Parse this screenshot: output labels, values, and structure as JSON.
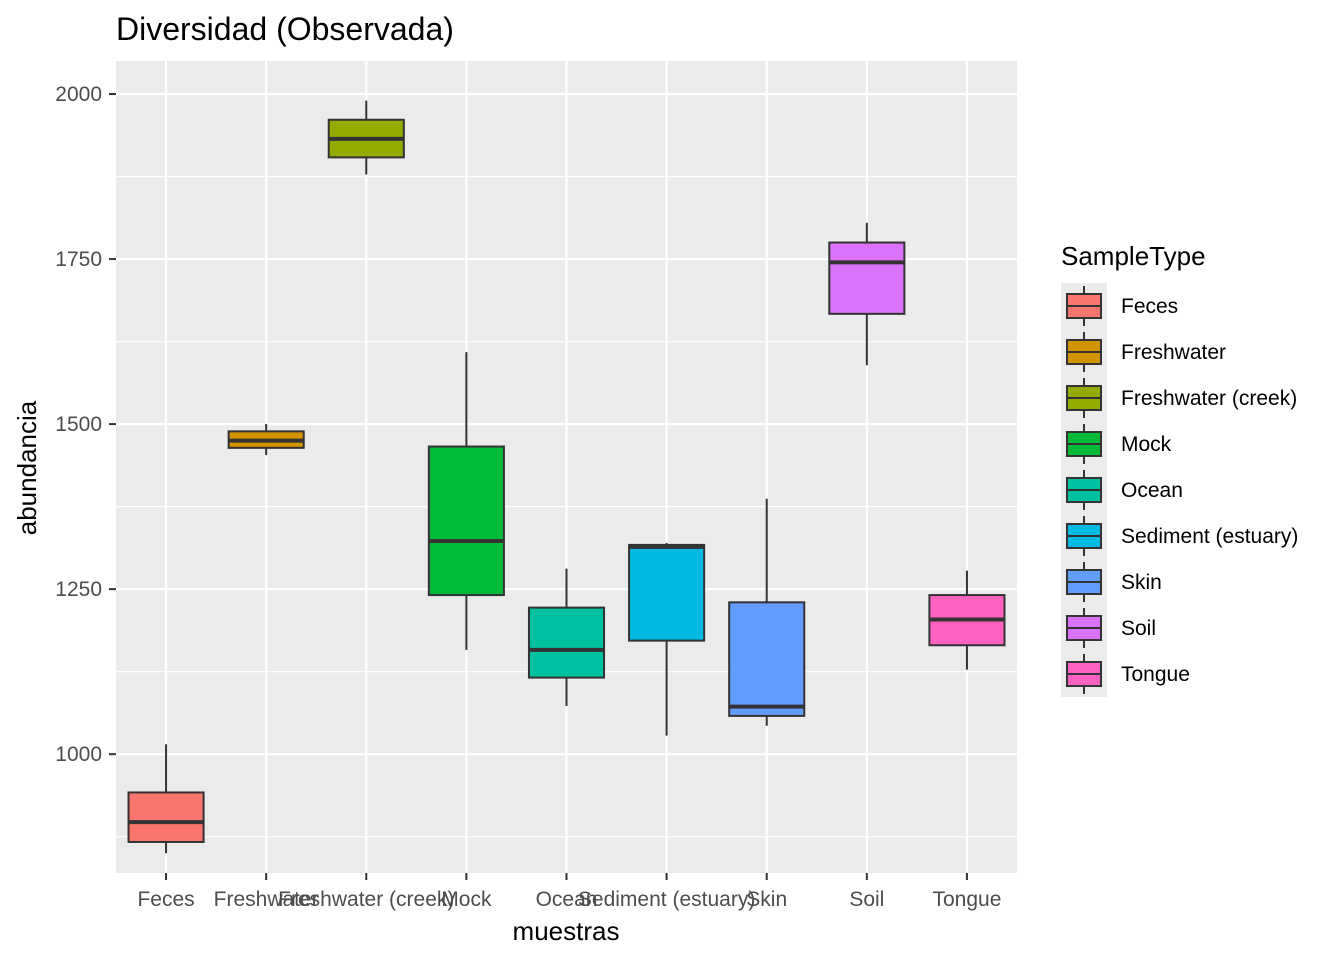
{
  "chart_data": {
    "type": "boxplot",
    "title": "Diversidad (Observada)",
    "xlabel": "muestras",
    "ylabel": "abundancia",
    "ylim": [
      820,
      2050
    ],
    "yticks": [
      1000,
      1250,
      1500,
      1750,
      2000
    ],
    "grid": true,
    "legend_position": "right",
    "legend_title": "SampleType",
    "categories": [
      "Feces",
      "Freshwater",
      "Freshwater (creek)",
      "Mock",
      "Ocean",
      "Sediment (estuary)",
      "Skin",
      "Soil",
      "Tongue"
    ],
    "series": [
      {
        "name": "Feces",
        "color": "#F8766D",
        "min": 850,
        "q1": 867,
        "median": 897,
        "q3": 942,
        "max": 1015
      },
      {
        "name": "Freshwater",
        "color": "#D39200",
        "min": 1453,
        "q1": 1464,
        "median": 1475,
        "q3": 1489,
        "max": 1500
      },
      {
        "name": "Freshwater (creek)",
        "color": "#93AA00",
        "min": 1878,
        "q1": 1904,
        "median": 1932,
        "q3": 1961,
        "max": 1990
      },
      {
        "name": "Mock",
        "color": "#00BA38",
        "min": 1158,
        "q1": 1241,
        "median": 1323,
        "q3": 1466,
        "max": 1609
      },
      {
        "name": "Ocean",
        "color": "#00C19F",
        "min": 1073,
        "q1": 1116,
        "median": 1158,
        "q3": 1222,
        "max": 1281
      },
      {
        "name": "Sediment (estuary)",
        "color": "#00B9E3",
        "min": 1028,
        "q1": 1172,
        "median": 1314,
        "q3": 1317,
        "max": 1320
      },
      {
        "name": "Skin",
        "color": "#619CFF",
        "min": 1043,
        "q1": 1058,
        "median": 1072,
        "q3": 1230,
        "max": 1387
      },
      {
        "name": "Soil",
        "color": "#DB72FB",
        "min": 1589,
        "q1": 1667,
        "median": 1745,
        "q3": 1775,
        "max": 1805
      },
      {
        "name": "Tongue",
        "color": "#FF61C3",
        "min": 1128,
        "q1": 1165,
        "median": 1204,
        "q3": 1241,
        "max": 1278
      }
    ]
  }
}
